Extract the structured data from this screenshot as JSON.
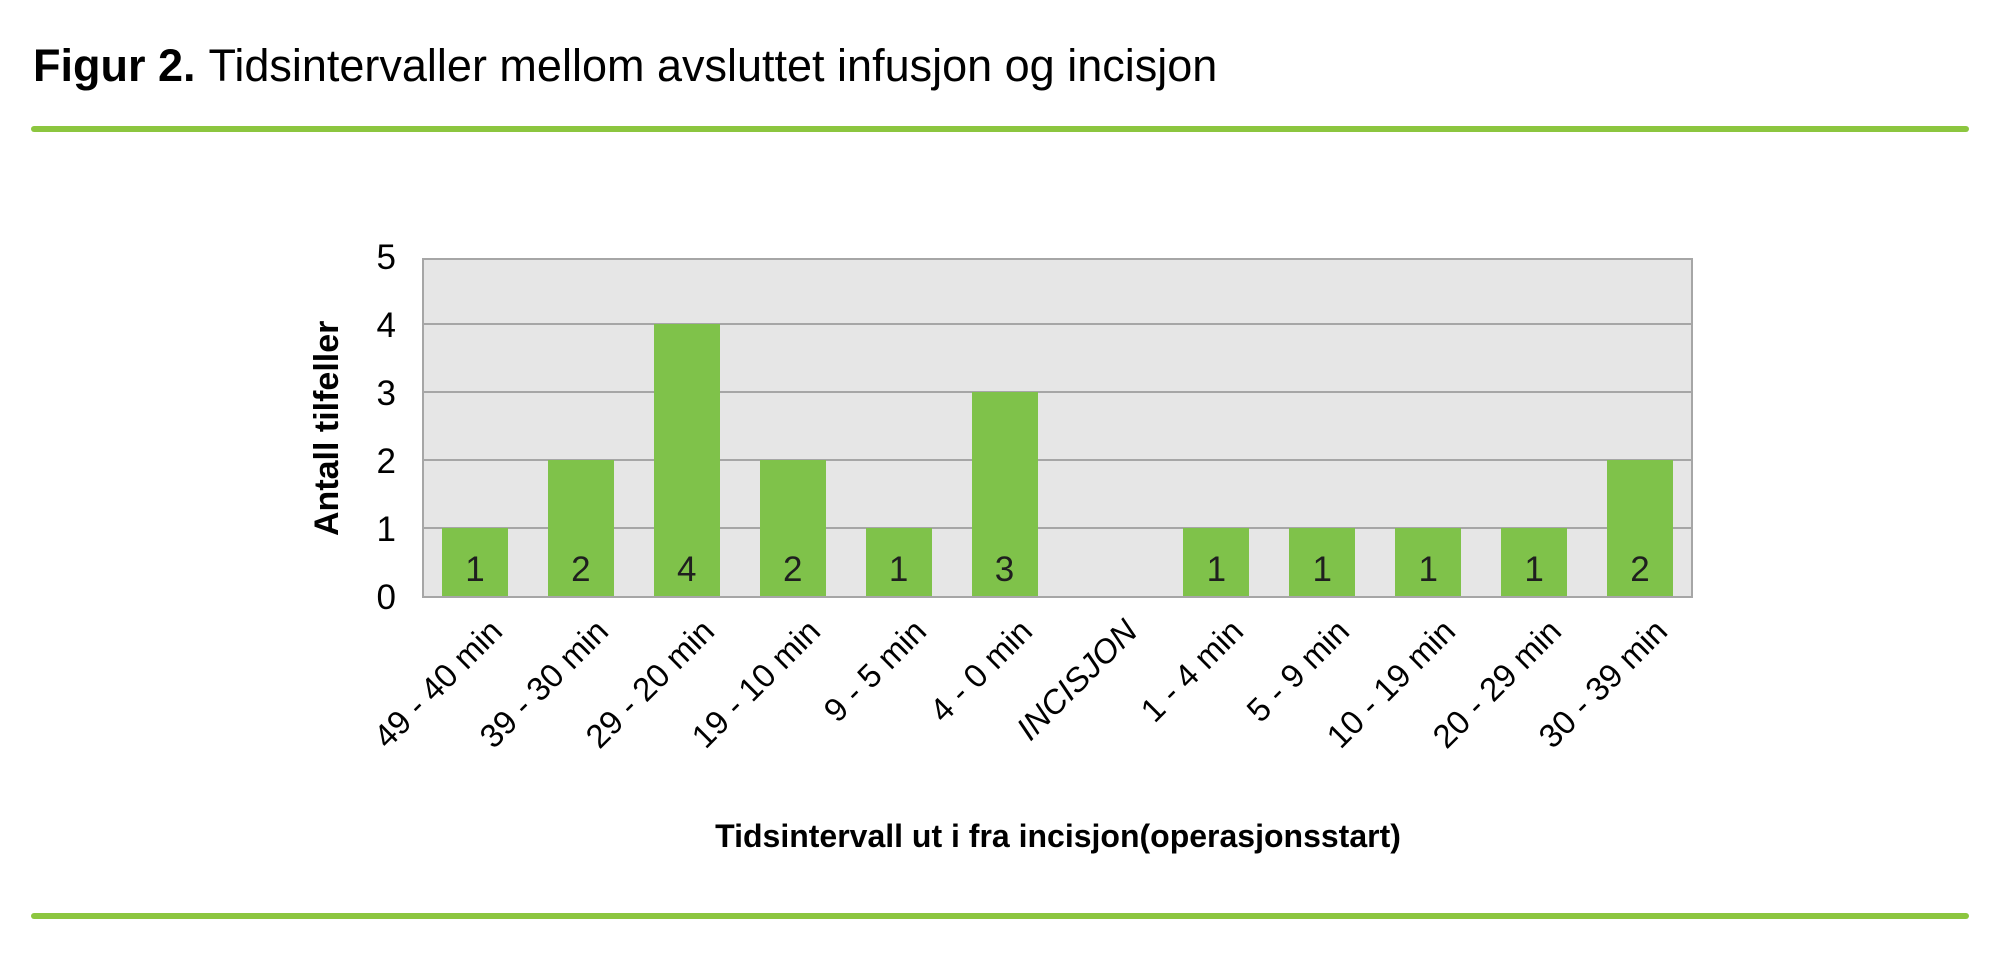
{
  "figure": {
    "title_prefix": "Figur 2.",
    "title_rest": "Tidsintervaller mellom avsluttet infusjon og incisjon"
  },
  "colors": {
    "bar": "#7FC24A",
    "rule": "#8CC63F",
    "plot_bg": "#E6E6E6",
    "grid": "#A6A6A6"
  },
  "chart_data": {
    "type": "bar",
    "title": "Figur 2. Tidsintervaller mellom avsluttet infusjon og incisjon",
    "xlabel": "Tidsintervall ut i fra incisjon(operasjonsstart)",
    "ylabel": "Antall tilfeller",
    "categories": [
      "49 - 40 min",
      "39 - 30 min",
      "29 - 20 min",
      "19 - 10 min",
      "9 - 5 min",
      "4 - 0 min",
      "INCISJON",
      "1 - 4 min",
      "5 - 9 min",
      "10 - 19 min",
      "20 - 29 min",
      "30 - 39 min"
    ],
    "values": [
      1,
      2,
      4,
      2,
      1,
      3,
      0,
      1,
      1,
      1,
      1,
      2
    ],
    "yticks": [
      0,
      1,
      2,
      3,
      4,
      5
    ],
    "ylim": [
      0,
      5
    ],
    "grid": true,
    "legend": false,
    "italic_category": "INCISJON"
  }
}
